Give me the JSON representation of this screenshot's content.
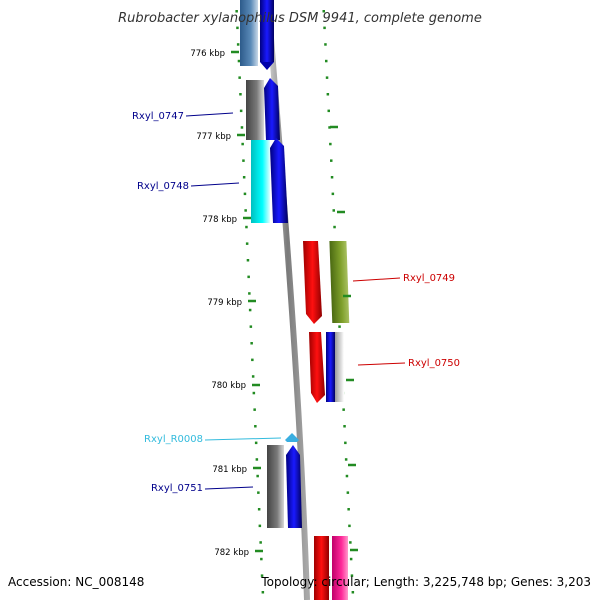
{
  "title": "Rubrobacter xylanophilus DSM 9941, complete genome",
  "footer": {
    "accession": "Accession: NC_008148",
    "summary": "Topology: circular; Length: 3,225,748 bp; Genes: 3,203"
  },
  "ticks": [
    {
      "label": "776 kbp"
    },
    {
      "label": "777 kbp"
    },
    {
      "label": "778 kbp"
    },
    {
      "label": "779 kbp"
    },
    {
      "label": "780 kbp"
    },
    {
      "label": "781 kbp"
    },
    {
      "label": "782 kbp"
    }
  ],
  "genes": [
    {
      "name": "Rxyl_0747",
      "color": "#00008b",
      "cog_color": "#6e6e6e",
      "strand": "forward"
    },
    {
      "name": "Rxyl_0748",
      "color": "#00008b",
      "cog_color": "#00e5e5",
      "strand": "forward"
    },
    {
      "name": "Rxyl_0749",
      "color": "#cc0000",
      "cog_color": "#6b8e23",
      "strand": "reverse"
    },
    {
      "name": "Rxyl_0750",
      "color": "#cc0000",
      "cog_color": "#c8c8c8",
      "strand": "reverse"
    },
    {
      "name": "Rxyl_R0008",
      "color": "#33bbdd",
      "cog_color": "#33aadd",
      "strand": "forward"
    },
    {
      "name": "Rxyl_0751",
      "color": "#00008b",
      "cog_color": "#666666",
      "strand": "forward"
    }
  ],
  "colors": {
    "backbone": "#8a8a8a",
    "forward_strand": "#0000ee",
    "reverse_strand": "#ee0000",
    "tick_marks": "#228b22"
  }
}
